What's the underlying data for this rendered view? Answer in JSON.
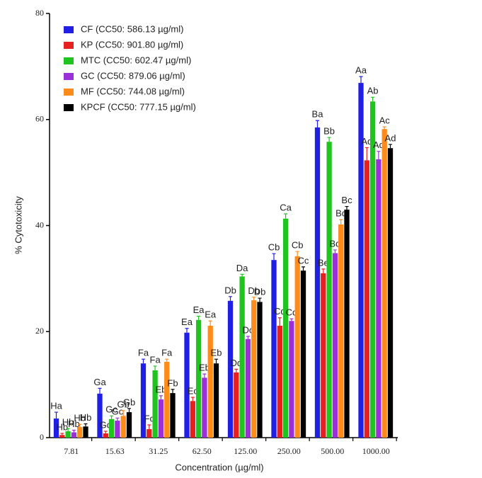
{
  "chart_data": {
    "type": "bar",
    "xlabel": "Concentration (µg/ml)",
    "ylabel": "% Cytotoxicity",
    "categories": [
      "7.81",
      "15.63",
      "31.25",
      "62.50",
      "125.00",
      "250.00",
      "500.00",
      "1000.00"
    ],
    "ylim": [
      0,
      80
    ],
    "yticks": [
      0,
      20,
      40,
      60,
      80
    ],
    "grid": false,
    "legend": "upper left",
    "series": [
      {
        "name": "CF (CC50: 586.13 µg/ml)",
        "color": "#1f1fe6",
        "values": [
          3.6,
          8.3,
          14.0,
          19.8,
          25.8,
          33.5,
          58.5,
          66.9
        ],
        "errors": [
          1.2,
          1.0,
          0.8,
          0.8,
          0.8,
          1.2,
          1.3,
          1.2
        ],
        "letters": [
          "Ha",
          "Ga",
          "Fa",
          "Ea",
          "Db",
          "Cb",
          "Ba",
          "Aa"
        ]
      },
      {
        "name": "KP (CC50: 901.80 µg/ml)",
        "color": "#e61f1f",
        "values": [
          0.5,
          0.8,
          1.6,
          6.9,
          12.3,
          21.1,
          31.0,
          52.3
        ],
        "errors": [
          0.3,
          0.4,
          0.8,
          0.7,
          0.6,
          1.5,
          0.8,
          2.4
        ],
        "letters": [
          "Hb",
          "Gd",
          "Fc",
          "Ec",
          "Dd",
          "Cd",
          "Be",
          "Ad"
        ]
      },
      {
        "name": "MTC (CC50: 602.47 µg/ml)",
        "color": "#1fc41f",
        "values": [
          1.2,
          3.5,
          12.7,
          22.2,
          30.4,
          41.3,
          55.8,
          63.4
        ],
        "errors": [
          0.5,
          0.6,
          0.8,
          0.7,
          0.4,
          0.9,
          0.8,
          0.8
        ],
        "letters": [
          "Hb",
          "Gc",
          "Fa",
          "Ea",
          "Da",
          "Ca",
          "Bb",
          "Ab"
        ]
      },
      {
        "name": "GC (CC50: 879.06 µg/ml)",
        "color": "#9b30d9",
        "values": [
          1.0,
          3.2,
          7.2,
          11.3,
          18.6,
          22.0,
          34.8,
          52.5
        ],
        "errors": [
          0.4,
          0.5,
          0.7,
          0.7,
          0.5,
          0.4,
          0.6,
          1.5
        ],
        "letters": [
          "Hb",
          "Gc",
          "Eb",
          "Eb",
          "Dc",
          "Cd",
          "Bd",
          "Ad"
        ]
      },
      {
        "name": "MF (CC50: 744.08 µg/ml)",
        "color": "#ff8c1a",
        "values": [
          2.0,
          4.1,
          14.3,
          21.1,
          25.9,
          34.2,
          40.2,
          58.2
        ],
        "errors": [
          0.5,
          1.0,
          0.5,
          0.9,
          0.6,
          0.9,
          0.9,
          0.4
        ],
        "letters": [
          "Hb",
          "Gb",
          "Fa",
          "Ea",
          "Db",
          "Cb",
          "Bc",
          "Ac"
        ]
      },
      {
        "name": "KPCF (CC50: 777.15 µg/ml)",
        "color": "#000000",
        "values": [
          2.1,
          4.8,
          8.4,
          14.0,
          25.6,
          31.5,
          43.0,
          54.6
        ],
        "errors": [
          0.5,
          0.7,
          0.7,
          0.8,
          0.7,
          0.7,
          0.6,
          0.7
        ],
        "letters": [
          "Hb",
          "Gb",
          "Fb",
          "Eb",
          "Db",
          "Cc",
          "Bc",
          "Ad"
        ]
      }
    ]
  }
}
